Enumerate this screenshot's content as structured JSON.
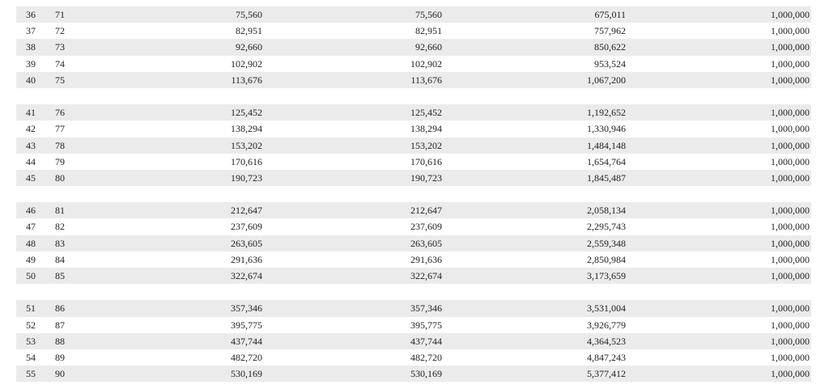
{
  "table": {
    "groups": [
      [
        [
          "36",
          "71",
          "75,560",
          "75,560",
          "675,011",
          "1,000,000"
        ],
        [
          "37",
          "72",
          "82,951",
          "82,951",
          "757,962",
          "1,000,000"
        ],
        [
          "38",
          "73",
          "92,660",
          "92,660",
          "850,622",
          "1,000,000"
        ],
        [
          "39",
          "74",
          "102,902",
          "102,902",
          "953,524",
          "1,000,000"
        ],
        [
          "40",
          "75",
          "113,676",
          "113,676",
          "1,067,200",
          "1,000,000"
        ]
      ],
      [
        [
          "41",
          "76",
          "125,452",
          "125,452",
          "1,192,652",
          "1,000,000"
        ],
        [
          "42",
          "77",
          "138,294",
          "138,294",
          "1,330,946",
          "1,000,000"
        ],
        [
          "43",
          "78",
          "153,202",
          "153,202",
          "1,484,148",
          "1,000,000"
        ],
        [
          "44",
          "79",
          "170,616",
          "170,616",
          "1,654,764",
          "1,000,000"
        ],
        [
          "45",
          "80",
          "190,723",
          "190,723",
          "1,845,487",
          "1,000,000"
        ]
      ],
      [
        [
          "46",
          "81",
          "212,647",
          "212,647",
          "2,058,134",
          "1,000,000"
        ],
        [
          "47",
          "82",
          "237,609",
          "237,609",
          "2,295,743",
          "1,000,000"
        ],
        [
          "48",
          "83",
          "263,605",
          "263,605",
          "2,559,348",
          "1,000,000"
        ],
        [
          "49",
          "84",
          "291,636",
          "291,636",
          "2,850,984",
          "1,000,000"
        ],
        [
          "50",
          "85",
          "322,674",
          "322,674",
          "3,173,659",
          "1,000,000"
        ]
      ],
      [
        [
          "51",
          "86",
          "357,346",
          "357,346",
          "3,531,004",
          "1,000,000"
        ],
        [
          "52",
          "87",
          "395,775",
          "395,775",
          "3,926,779",
          "1,000,000"
        ],
        [
          "53",
          "88",
          "437,744",
          "437,744",
          "4,364,523",
          "1,000,000"
        ],
        [
          "54",
          "89",
          "482,720",
          "482,720",
          "4,847,243",
          "1,000,000"
        ],
        [
          "55",
          "90",
          "530,169",
          "530,169",
          "5,377,412",
          "1,000,000"
        ]
      ]
    ],
    "row_shading": "#ebebeb"
  }
}
